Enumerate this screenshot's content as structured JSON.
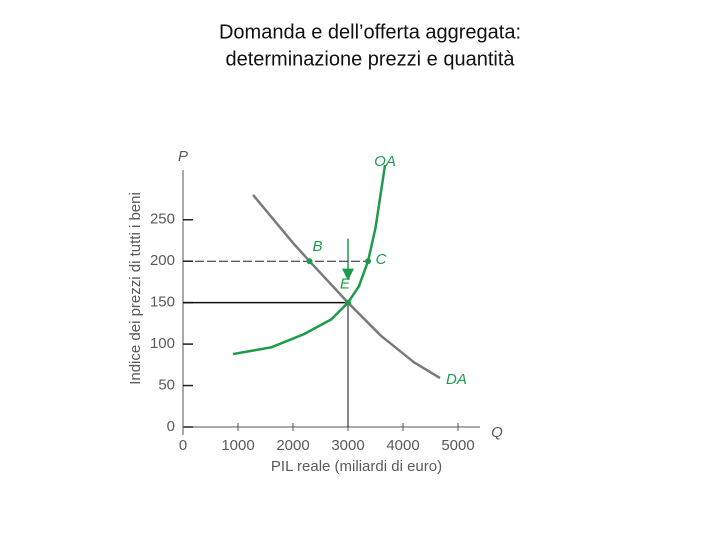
{
  "chart_data": {
    "type": "line",
    "title_lines": [
      "Domanda e dell’offerta aggregata:",
      "determinazione prezzi e quantità"
    ],
    "y_axis_symbol": "P",
    "x_axis_symbol": "Q",
    "y_label": "Indice dei prezzi di tutti i beni",
    "x_label": "PIL reale (miliardi di euro)",
    "xlim": [
      0,
      5400
    ],
    "ylim": [
      0,
      310
    ],
    "xticks": [
      0,
      1000,
      2000,
      3000,
      4000,
      5000
    ],
    "yticks": [
      0,
      50,
      100,
      150,
      200,
      250
    ],
    "series": [
      {
        "name": "DA",
        "color": "#7a7a7a",
        "x": [
          1273,
          2000,
          2300,
          3000,
          3600,
          4200,
          4673
        ],
        "values": [
          280,
          222,
          200,
          150,
          110,
          78,
          59
        ]
      },
      {
        "name": "OA",
        "color": "#1e9a4a",
        "x": [
          909,
          1600,
          2200,
          2700,
          3000,
          3200,
          3364,
          3500,
          3673
        ],
        "values": [
          88,
          96,
          112,
          130,
          150,
          170,
          200,
          240,
          316
        ]
      }
    ],
    "points": [
      {
        "label": "B",
        "x": 2300,
        "y": 200
      },
      {
        "label": "C",
        "x": 3364,
        "y": 200
      },
      {
        "label": "E",
        "x": 3000,
        "y": 150
      }
    ]
  }
}
